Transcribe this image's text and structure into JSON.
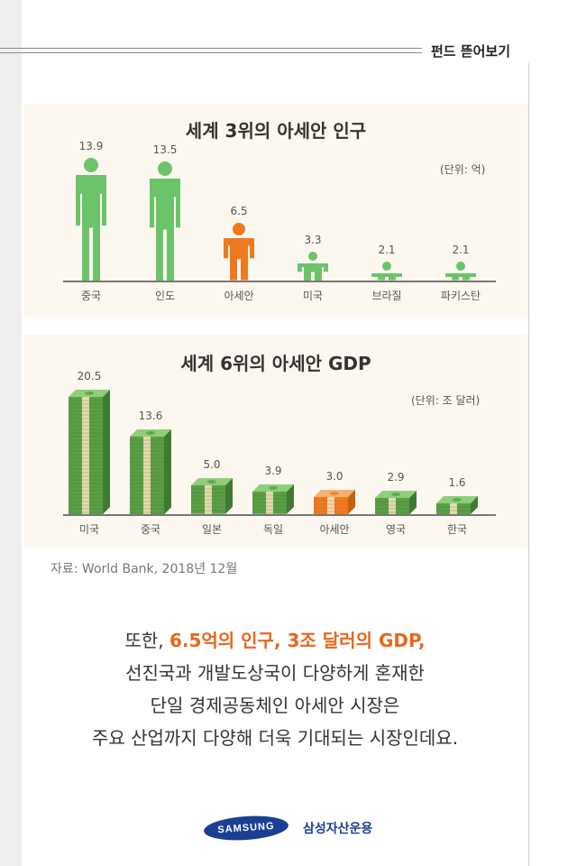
{
  "header": {
    "title": "펀드 뜯어보기"
  },
  "chart_data": [
    {
      "type": "bar",
      "title": "세계 3위의 아세안 인구",
      "unit": "(단위: 억)",
      "categories": [
        "중국",
        "인도",
        "아세안",
        "미국",
        "브라질",
        "파키스탄"
      ],
      "values": [
        13.9,
        13.5,
        6.5,
        3.3,
        2.1,
        2.1
      ],
      "value_labels": [
        "13.9",
        "13.5",
        "6.5",
        "3.3",
        "2.1",
        "2.1"
      ],
      "highlight": "아세안",
      "mark": "person-icon",
      "colors": {
        "normal": "#6cc46a",
        "highlight": "#ef7a1e"
      }
    },
    {
      "type": "bar",
      "title": "세계 6위의 아세안 GDP",
      "unit": "(단위: 조 달러)",
      "categories": [
        "미국",
        "중국",
        "일본",
        "독일",
        "아세안",
        "영국",
        "한국"
      ],
      "values": [
        20.5,
        13.6,
        5.0,
        3.9,
        3.0,
        2.9,
        1.6
      ],
      "value_labels": [
        "20.5",
        "13.6",
        "5.0",
        "3.9",
        "3.0",
        "2.9",
        "1.6"
      ],
      "highlight": "아세안",
      "mark": "money-stack-icon",
      "colors": {
        "normal": "#5a9e46",
        "highlight": "#ef7a1e"
      }
    }
  ],
  "source": "자료: World Bank, 2018년 12월",
  "body": {
    "line1_pre": "또한, ",
    "line1_highlight": "6.5억의 인구, 3조 달러의 GDP,",
    "line2": "선진국과 개발도상국이 다양하게 혼재한",
    "line3": "단일 경제공동체인 아세안 시장은",
    "line4": "주요 산업까지 다양해 더욱 기대되는 시장인데요."
  },
  "footer": {
    "logo_text": "SAMSUNG",
    "company": "삼성자산운용"
  }
}
